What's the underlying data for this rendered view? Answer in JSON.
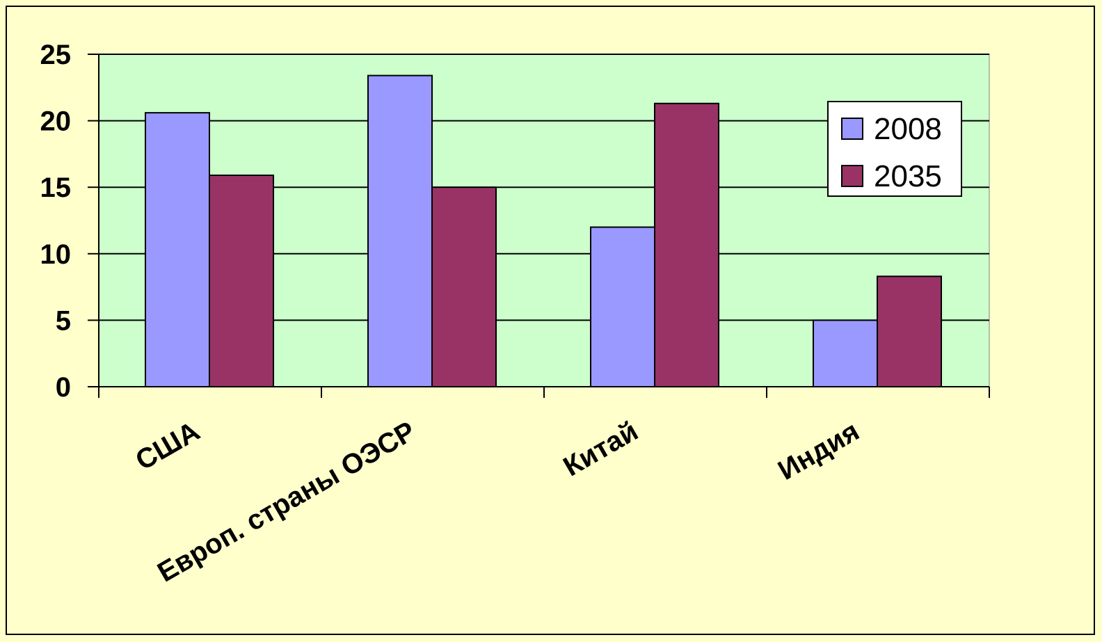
{
  "chart_data": {
    "type": "bar",
    "categories": [
      "США",
      "Европ. страны ОЭСР",
      "Китай",
      "Индия"
    ],
    "series": [
      {
        "name": "2008",
        "values": [
          20.6,
          23.4,
          12.0,
          5.0
        ],
        "color": "#9999ff"
      },
      {
        "name": "2035",
        "values": [
          15.9,
          15.0,
          21.3,
          8.3
        ],
        "color": "#993366"
      }
    ],
    "ylim": [
      0,
      25
    ],
    "yticks": [
      "0",
      "5",
      "10",
      "15",
      "20",
      "25"
    ],
    "ytick_values": [
      0,
      5,
      10,
      15,
      20,
      25
    ],
    "grid": true,
    "legend_position": "top-right",
    "plot_background": "#ccffcc",
    "page_background": "#ffffcc"
  }
}
